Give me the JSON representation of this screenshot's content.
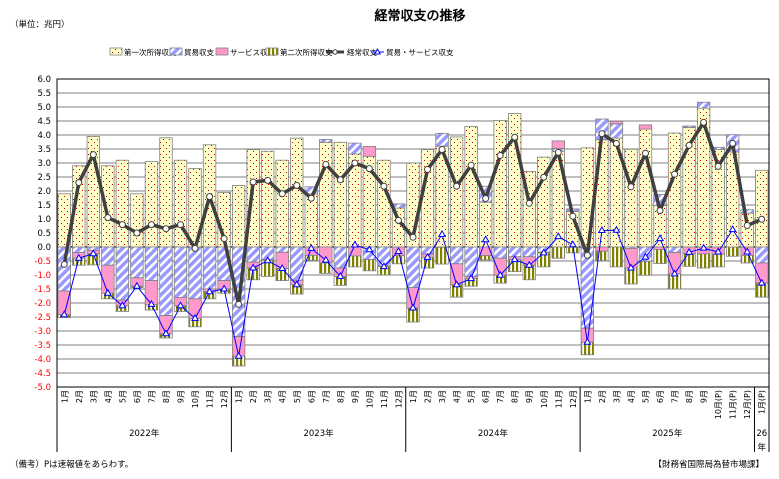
{
  "header": {
    "title": "経常収支の推移",
    "unit": "（単位：兆円）"
  },
  "footer": {
    "note": "（備考）Pは速報値をあらわす。",
    "source": "【財務省国際局為替市場課】"
  },
  "legend": [
    {
      "label": "第一次所得収支",
      "color": "#FFFFCC"
    },
    {
      "label": "貿易収支",
      "color": "#9999FF"
    },
    {
      "label": "サービス収支",
      "color": "#FF99CC"
    },
    {
      "label": "第二次所得収支",
      "color": "#808000"
    },
    {
      "label": "経常収支",
      "color": "#404040"
    },
    {
      "label": "貿易・サービス収支",
      "color": "#0000FF"
    }
  ],
  "chart_data": {
    "type": "bar",
    "title": "経常収支の推移",
    "ylabel": "（単位：兆円）",
    "ylim": [
      -5.0,
      6.0
    ],
    "ytick_step": 0.5,
    "grid": true,
    "legend_position": "top",
    "negative_tick_color": "#FF0000",
    "categories": [
      "1月",
      "2月",
      "3月",
      "4月",
      "5月",
      "6月",
      "7月",
      "8月",
      "9月",
      "10月",
      "11月",
      "12月",
      "1月",
      "2月",
      "3月",
      "4月",
      "5月",
      "6月",
      "7月",
      "8月",
      "9月",
      "10月",
      "11月",
      "12月",
      "1月",
      "2月",
      "3月",
      "4月",
      "5月",
      "6月",
      "7月",
      "8月",
      "9月",
      "10月",
      "11月",
      "12月",
      "1月",
      "2月",
      "3月",
      "4月",
      "5月",
      "6月",
      "7月",
      "8月",
      "9月",
      "10月(P)",
      "11月(P)",
      "12月(P)",
      "1月(P)"
    ],
    "years": [
      {
        "label": "2022年",
        "months": 12
      },
      {
        "label": "2023年",
        "months": 12
      },
      {
        "label": "2024年",
        "months": 12
      },
      {
        "label": "2025年",
        "months": 12
      },
      {
        "label": "26",
        "label2": "年",
        "months": 1
      }
    ],
    "series": [
      {
        "name": "第一次所得収支",
        "kind": "bar",
        "values": [
          1.9,
          2.9,
          3.95,
          2.9,
          3.1,
          1.9,
          3.05,
          3.9,
          3.1,
          2.8,
          3.65,
          1.95,
          2.2,
          3.48,
          3.42,
          3.1,
          3.89,
          1.9,
          3.74,
          3.74,
          3.32,
          3.24,
          3.1,
          1.39,
          3.0,
          3.48,
          3.6,
          3.93,
          4.31,
          1.6,
          4.52,
          4.77,
          2.7,
          3.21,
          3.42,
          1.27,
          3.54,
          3.83,
          3.89,
          3.49,
          4.21,
          1.48,
          4.07,
          4.27,
          4.96,
          3.48,
          3.39,
          1.21,
          2.74
        ]
      },
      {
        "name": "貿易収支",
        "kind": "bar",
        "values": [
          -1.57,
          -0.2,
          -0.12,
          -0.65,
          -1.9,
          -1.1,
          -1.2,
          -2.45,
          -1.8,
          -1.85,
          -1.5,
          -1.2,
          -3.2,
          -0.54,
          -0.45,
          -0.19,
          -1.19,
          0.25,
          0.1,
          -0.75,
          0.39,
          -0.45,
          -0.68,
          0.15,
          -1.45,
          -0.25,
          0.46,
          -0.6,
          -1.05,
          0.57,
          -0.4,
          -0.35,
          -0.35,
          -0.18,
          0.1,
          0.09,
          -2.9,
          0.74,
          0.51,
          -0.05,
          -0.51,
          0.39,
          -0.2,
          0.05,
          0.21,
          0.08,
          0.62,
          0.12,
          -0.57
        ]
      },
      {
        "name": "サービス収支",
        "kind": "bar",
        "values": [
          -0.85,
          -0.2,
          -0.12,
          -1.0,
          -0.2,
          -0.3,
          -0.85,
          -0.65,
          -0.3,
          -0.7,
          -0.1,
          -0.3,
          -0.7,
          -0.21,
          -0.04,
          -0.58,
          -0.16,
          -0.3,
          -0.57,
          -0.3,
          -0.32,
          0.35,
          -0.02,
          -0.31,
          -0.73,
          -0.12,
          -0.01,
          -0.75,
          -0.08,
          -0.31,
          -0.61,
          -0.1,
          -0.3,
          -0.03,
          0.27,
          -0.01,
          -0.5,
          -0.15,
          0.09,
          -0.7,
          0.15,
          -0.09,
          -0.76,
          -0.24,
          -0.25,
          -0.26,
          0.0,
          -0.3,
          -0.72
        ]
      },
      {
        "name": "第二次所得収支",
        "kind": "bar",
        "values": [
          -0.1,
          -0.25,
          -0.4,
          -0.2,
          -0.2,
          -0.05,
          -0.2,
          -0.15,
          -0.2,
          -0.3,
          -0.25,
          -0.15,
          -0.35,
          -0.42,
          -0.56,
          -0.43,
          -0.33,
          -0.18,
          -0.37,
          -0.32,
          -0.39,
          -0.4,
          -0.3,
          -0.29,
          -0.5,
          -0.38,
          -0.6,
          -0.44,
          -0.27,
          -0.15,
          -0.28,
          -0.43,
          -0.52,
          -0.5,
          -0.4,
          -0.2,
          -0.45,
          -0.34,
          -0.71,
          -0.57,
          -0.5,
          -0.5,
          -0.54,
          -0.45,
          -0.5,
          -0.45,
          -0.33,
          -0.27,
          -0.5
        ]
      },
      {
        "name": "経常収支",
        "kind": "line",
        "values": [
          -0.62,
          2.3,
          3.3,
          1.05,
          0.8,
          0.5,
          0.8,
          0.65,
          0.8,
          -0.05,
          1.8,
          0.3,
          -2.05,
          2.32,
          2.38,
          1.9,
          2.2,
          1.74,
          2.95,
          2.4,
          3.0,
          2.8,
          2.17,
          0.95,
          0.35,
          2.77,
          3.48,
          2.17,
          2.92,
          1.73,
          3.27,
          3.92,
          1.56,
          2.49,
          3.38,
          1.1,
          -0.3,
          4.05,
          3.7,
          2.15,
          3.35,
          1.3,
          2.6,
          3.63,
          4.45,
          2.88,
          3.7,
          0.77,
          0.99
        ]
      },
      {
        "name": "貿易・サービス収支",
        "kind": "line",
        "values": [
          -2.42,
          -0.4,
          -0.24,
          -1.65,
          -2.1,
          -1.4,
          -2.05,
          -3.1,
          -2.1,
          -2.55,
          -1.6,
          -1.5,
          -3.9,
          -0.75,
          -0.49,
          -0.77,
          -1.35,
          -0.05,
          -0.47,
          -1.05,
          0.07,
          -0.1,
          -0.7,
          -0.16,
          -2.18,
          -0.37,
          0.45,
          -1.35,
          -1.13,
          0.26,
          -1.01,
          -0.45,
          -0.65,
          -0.21,
          0.37,
          0.08,
          -3.4,
          0.59,
          0.6,
          -0.75,
          -0.36,
          0.3,
          -0.96,
          -0.19,
          -0.04,
          -0.18,
          0.62,
          -0.18,
          -1.29
        ]
      }
    ]
  }
}
